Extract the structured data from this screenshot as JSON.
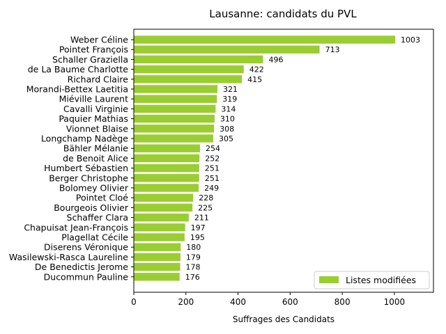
{
  "chart_data": {
    "type": "bar",
    "orientation": "horizontal",
    "title": "Lausanne: candidats du PVL",
    "xlabel": "Suffrages des Candidats",
    "ylabel": "",
    "xlim": [
      0,
      1150
    ],
    "xticks": [
      0,
      200,
      400,
      600,
      800,
      1000
    ],
    "grid": false,
    "legend_position": "lower-right",
    "bar_color": "#9acd32",
    "series": [
      {
        "name": "Listes modifiées",
        "values": [
          1003,
          713,
          496,
          422,
          415,
          321,
          319,
          314,
          310,
          308,
          305,
          254,
          252,
          251,
          251,
          249,
          228,
          225,
          211,
          197,
          195,
          180,
          179,
          178,
          176
        ]
      }
    ],
    "categories": [
      "Weber Céline",
      "Pointet François",
      "Schaller Graziella",
      "de La Baume Charlotte",
      "Richard Claire",
      "Morandi-Bettex Laetitia",
      "Miéville Laurent",
      "Cavalli Virginie",
      "Paquier Mathias",
      "Vionnet Blaise",
      "Longchamp Nadège",
      "Bähler Mélanie",
      "de Benoit Alice",
      "Humbert Sébastien",
      "Berger Christophe",
      "Bolomey Olivier",
      "Pointet Cloé",
      "Bourgeois Olivier",
      "Schaffer Clara",
      "Chapuisat Jean-François",
      "Plagellat Cécile",
      "Diserens Véronique",
      "Wasilewski-Rasca Laureline",
      "De Benedictis Jerome",
      "Ducommun Pauline"
    ]
  }
}
